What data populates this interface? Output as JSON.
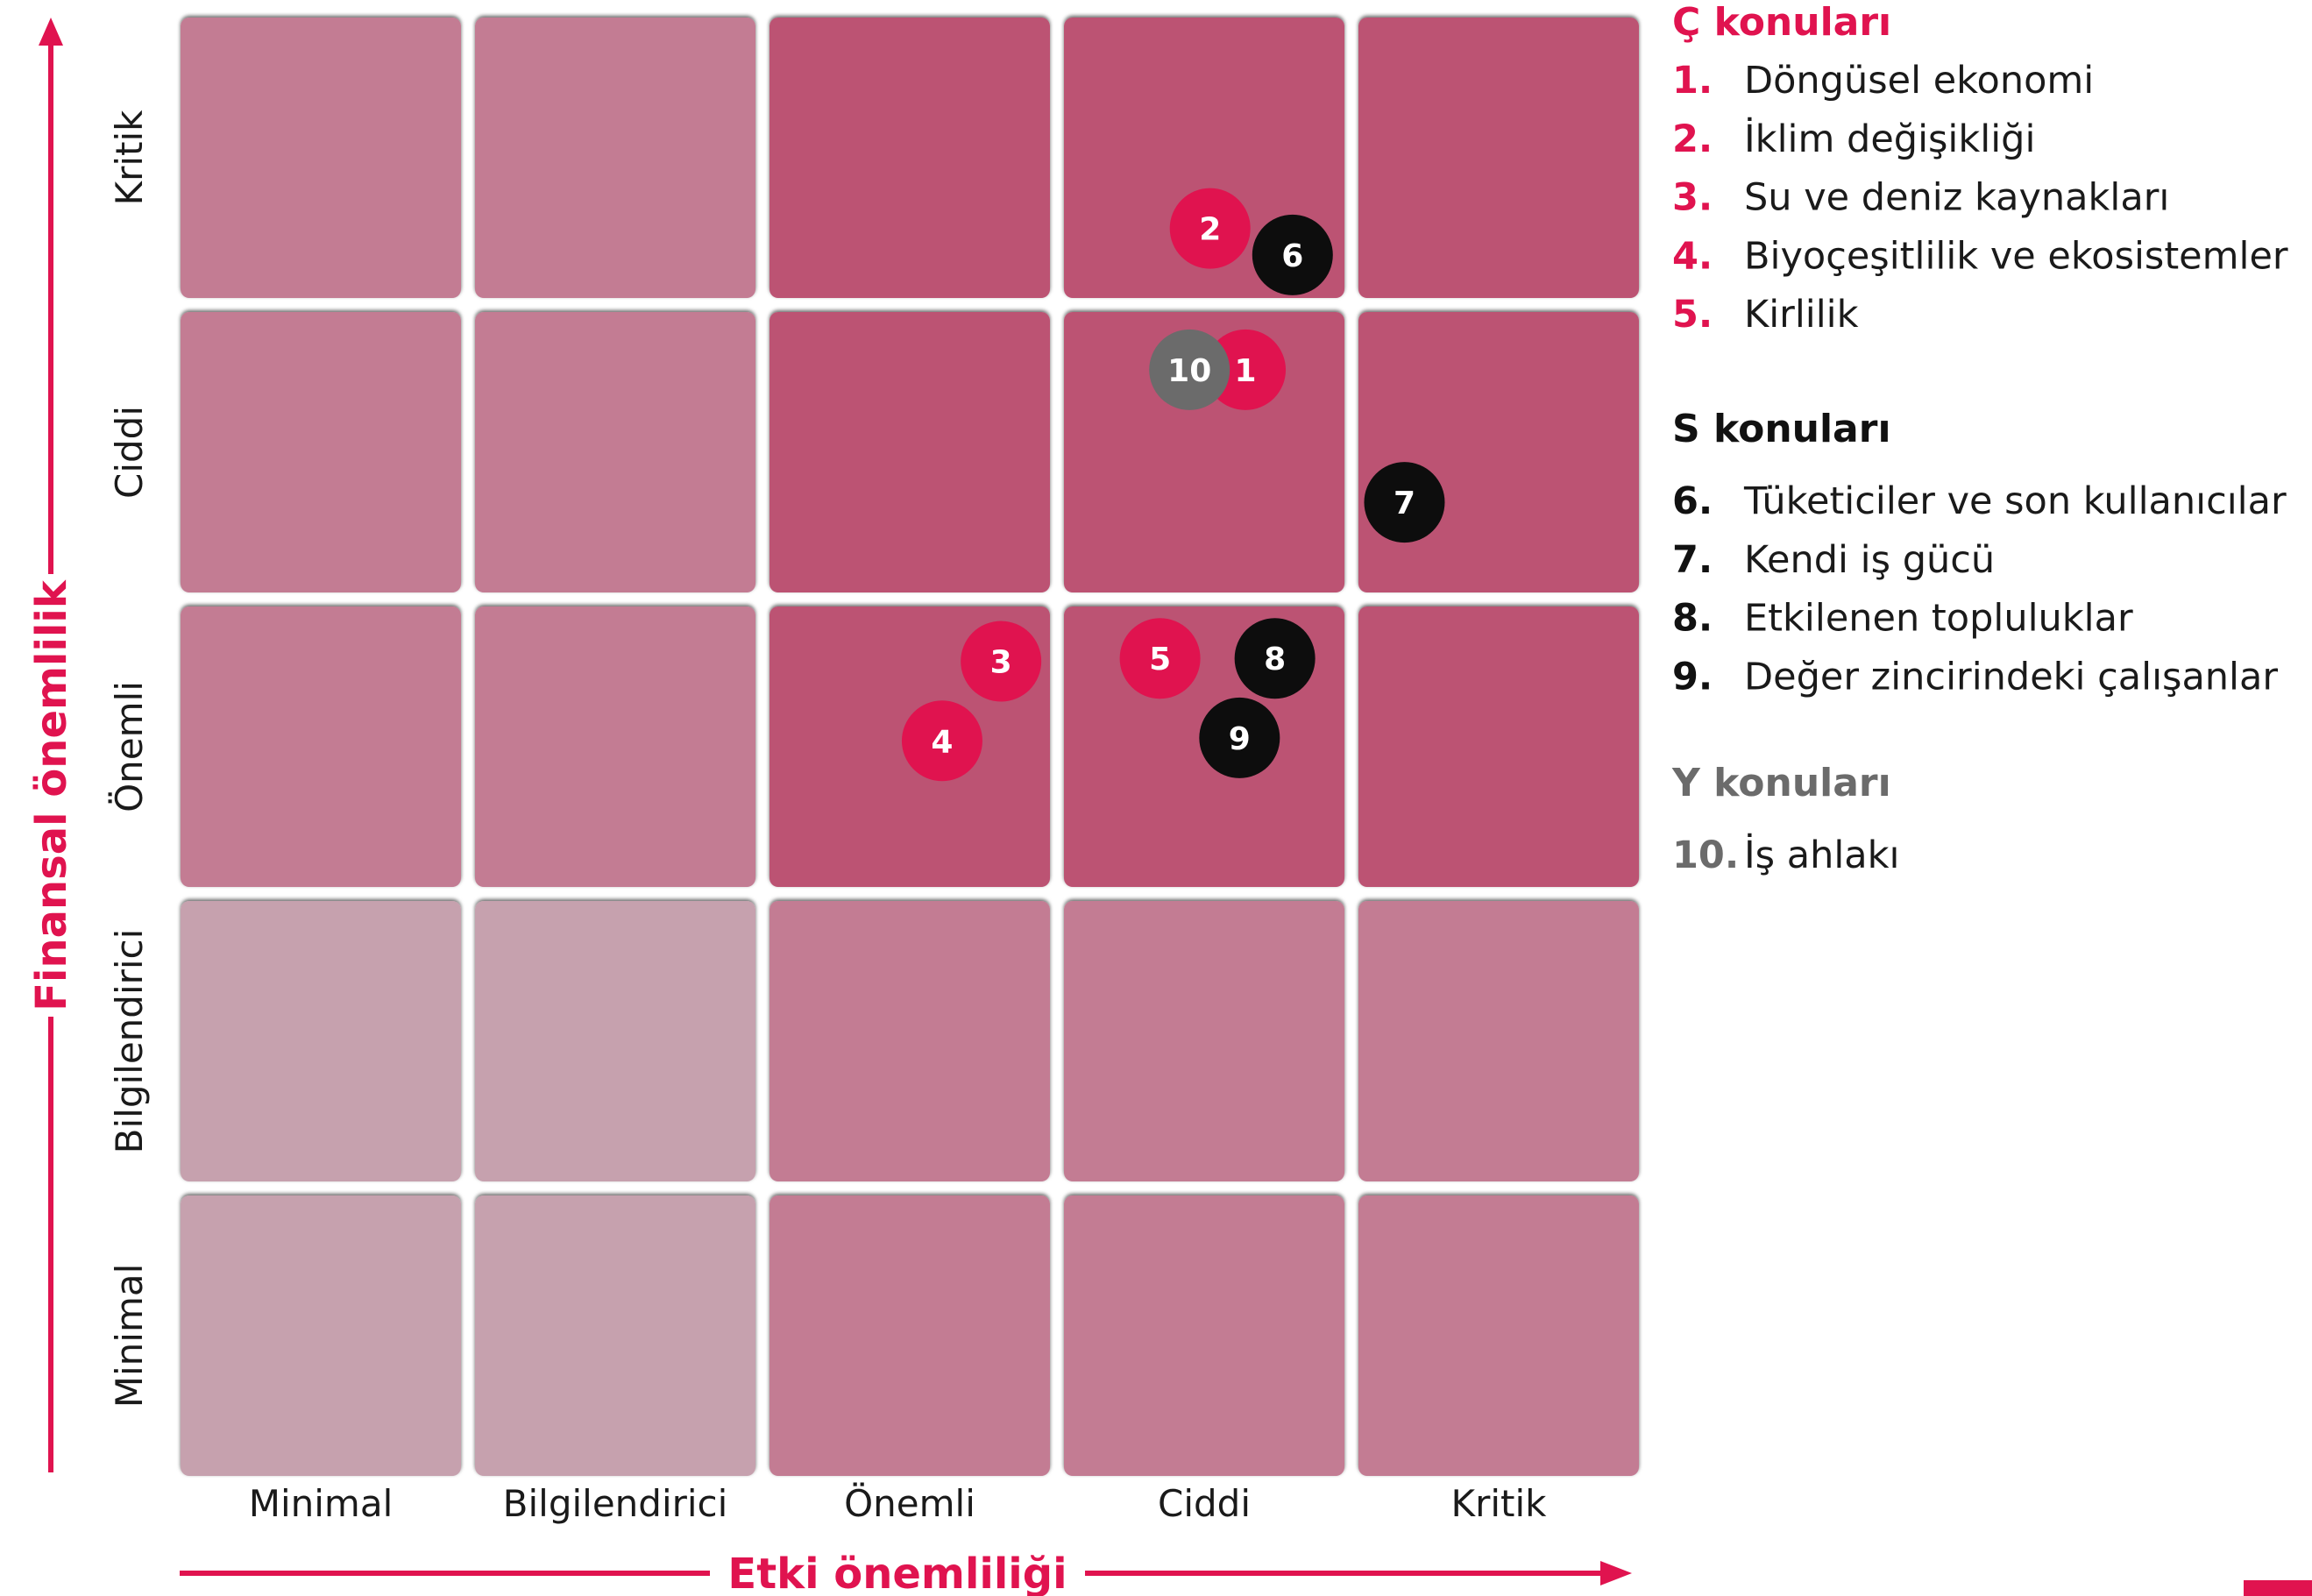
{
  "colors": {
    "accent": "#e0134f",
    "black": "#0d0d0d",
    "gray": "#6b6b6b",
    "cell_light": "#c6a1ae",
    "cell_medium": "#c37c93",
    "cell_dark": "#bc5273",
    "arrow": "#e0134f"
  },
  "chart_data": {
    "type": "scatter",
    "x_axis": {
      "label": "Etki önemliliği",
      "categories": [
        "Minimal",
        "Bilgilendirici",
        "Önemli",
        "Ciddi",
        "Kritik"
      ]
    },
    "y_axis": {
      "label": "Finansal önemlilik",
      "categories": [
        "Minimal",
        "Bilgilendirici",
        "Önemli",
        "Ciddi",
        "Kritik"
      ]
    },
    "grid_shading": [
      [
        "light",
        "light",
        "medium",
        "medium",
        "medium"
      ],
      [
        "light",
        "light",
        "medium",
        "medium",
        "medium"
      ],
      [
        "medium",
        "medium",
        "dark",
        "dark",
        "dark"
      ],
      [
        "medium",
        "medium",
        "dark",
        "dark",
        "dark"
      ],
      [
        "medium",
        "medium",
        "dark",
        "dark",
        "dark"
      ]
    ],
    "points": [
      {
        "label": "1",
        "x": 3.64,
        "y": 3.78,
        "group": "C"
      },
      {
        "label": "2",
        "x": 3.52,
        "y": 4.26,
        "group": "C"
      },
      {
        "label": "3",
        "x": 2.81,
        "y": 2.79,
        "group": "C"
      },
      {
        "label": "4",
        "x": 2.61,
        "y": 2.52,
        "group": "C"
      },
      {
        "label": "5",
        "x": 3.35,
        "y": 2.8,
        "group": "C"
      },
      {
        "label": "6",
        "x": 3.8,
        "y": 4.17,
        "group": "S"
      },
      {
        "label": "7",
        "x": 4.18,
        "y": 3.33,
        "group": "S"
      },
      {
        "label": "8",
        "x": 3.74,
        "y": 2.8,
        "group": "S"
      },
      {
        "label": "9",
        "x": 3.62,
        "y": 2.53,
        "group": "S"
      },
      {
        "label": "10",
        "x": 3.45,
        "y": 3.78,
        "group": "Y"
      }
    ],
    "legend": [
      {
        "group": "C",
        "title": "Ç konuları",
        "items": [
          {
            "num": "1.",
            "text": "Döngüsel ekonomi"
          },
          {
            "num": "2.",
            "text": "İklim değişikliği"
          },
          {
            "num": "3.",
            "text": "Su ve deniz kaynakları"
          },
          {
            "num": "4.",
            "text": "Biyoçeşitlilik ve ekosistemler"
          },
          {
            "num": "5.",
            "text": "Kirlilik"
          }
        ]
      },
      {
        "group": "S",
        "title": "S konuları",
        "items": [
          {
            "num": "6.",
            "text": "Tüketiciler ve son kullanıcılar"
          },
          {
            "num": "7.",
            "text": "Kendi iş gücü"
          },
          {
            "num": "8.",
            "text": "Etkilenen topluluklar"
          },
          {
            "num": "9.",
            "text": "Değer zincirindeki çalışanlar"
          }
        ]
      },
      {
        "group": "Y",
        "title": "Y konuları",
        "items": [
          {
            "num": "10.",
            "text": "İş ahlakı"
          }
        ]
      }
    ]
  }
}
